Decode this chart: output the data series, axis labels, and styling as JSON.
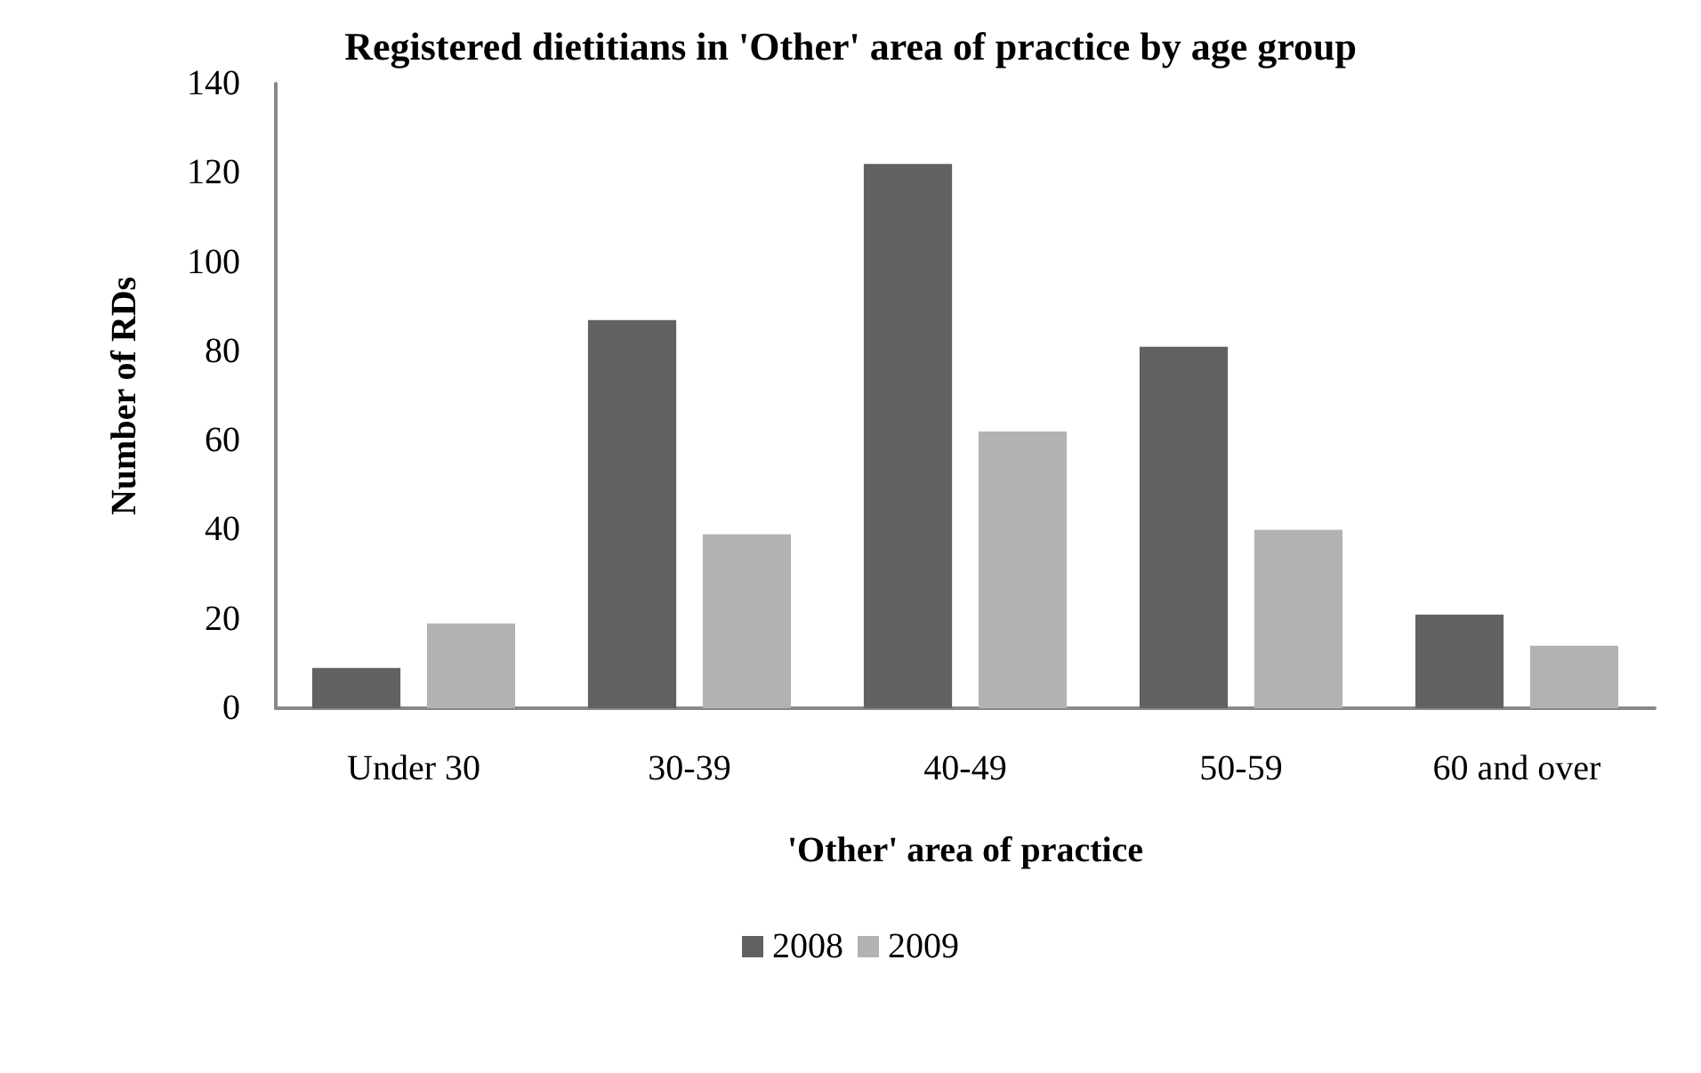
{
  "chart_data": {
    "type": "bar",
    "title": "Registered dietitians in 'Other' area of practice by age group",
    "xlabel": "'Other' area of practice",
    "ylabel": "Number of RDs",
    "categories": [
      "Under 30",
      "30-39",
      "40-49",
      "50-59",
      "60 and over"
    ],
    "series": [
      {
        "name": "2008",
        "color": "#616161",
        "values": [
          9,
          87,
          122,
          81,
          21
        ]
      },
      {
        "name": "2009",
        "color": "#b2b2b2",
        "values": [
          19,
          39,
          62,
          40,
          14
        ]
      }
    ],
    "ylim": [
      0,
      140
    ],
    "yticks": [
      0,
      20,
      40,
      60,
      80,
      100,
      120,
      140
    ],
    "grid": false,
    "legend": "bottom"
  }
}
